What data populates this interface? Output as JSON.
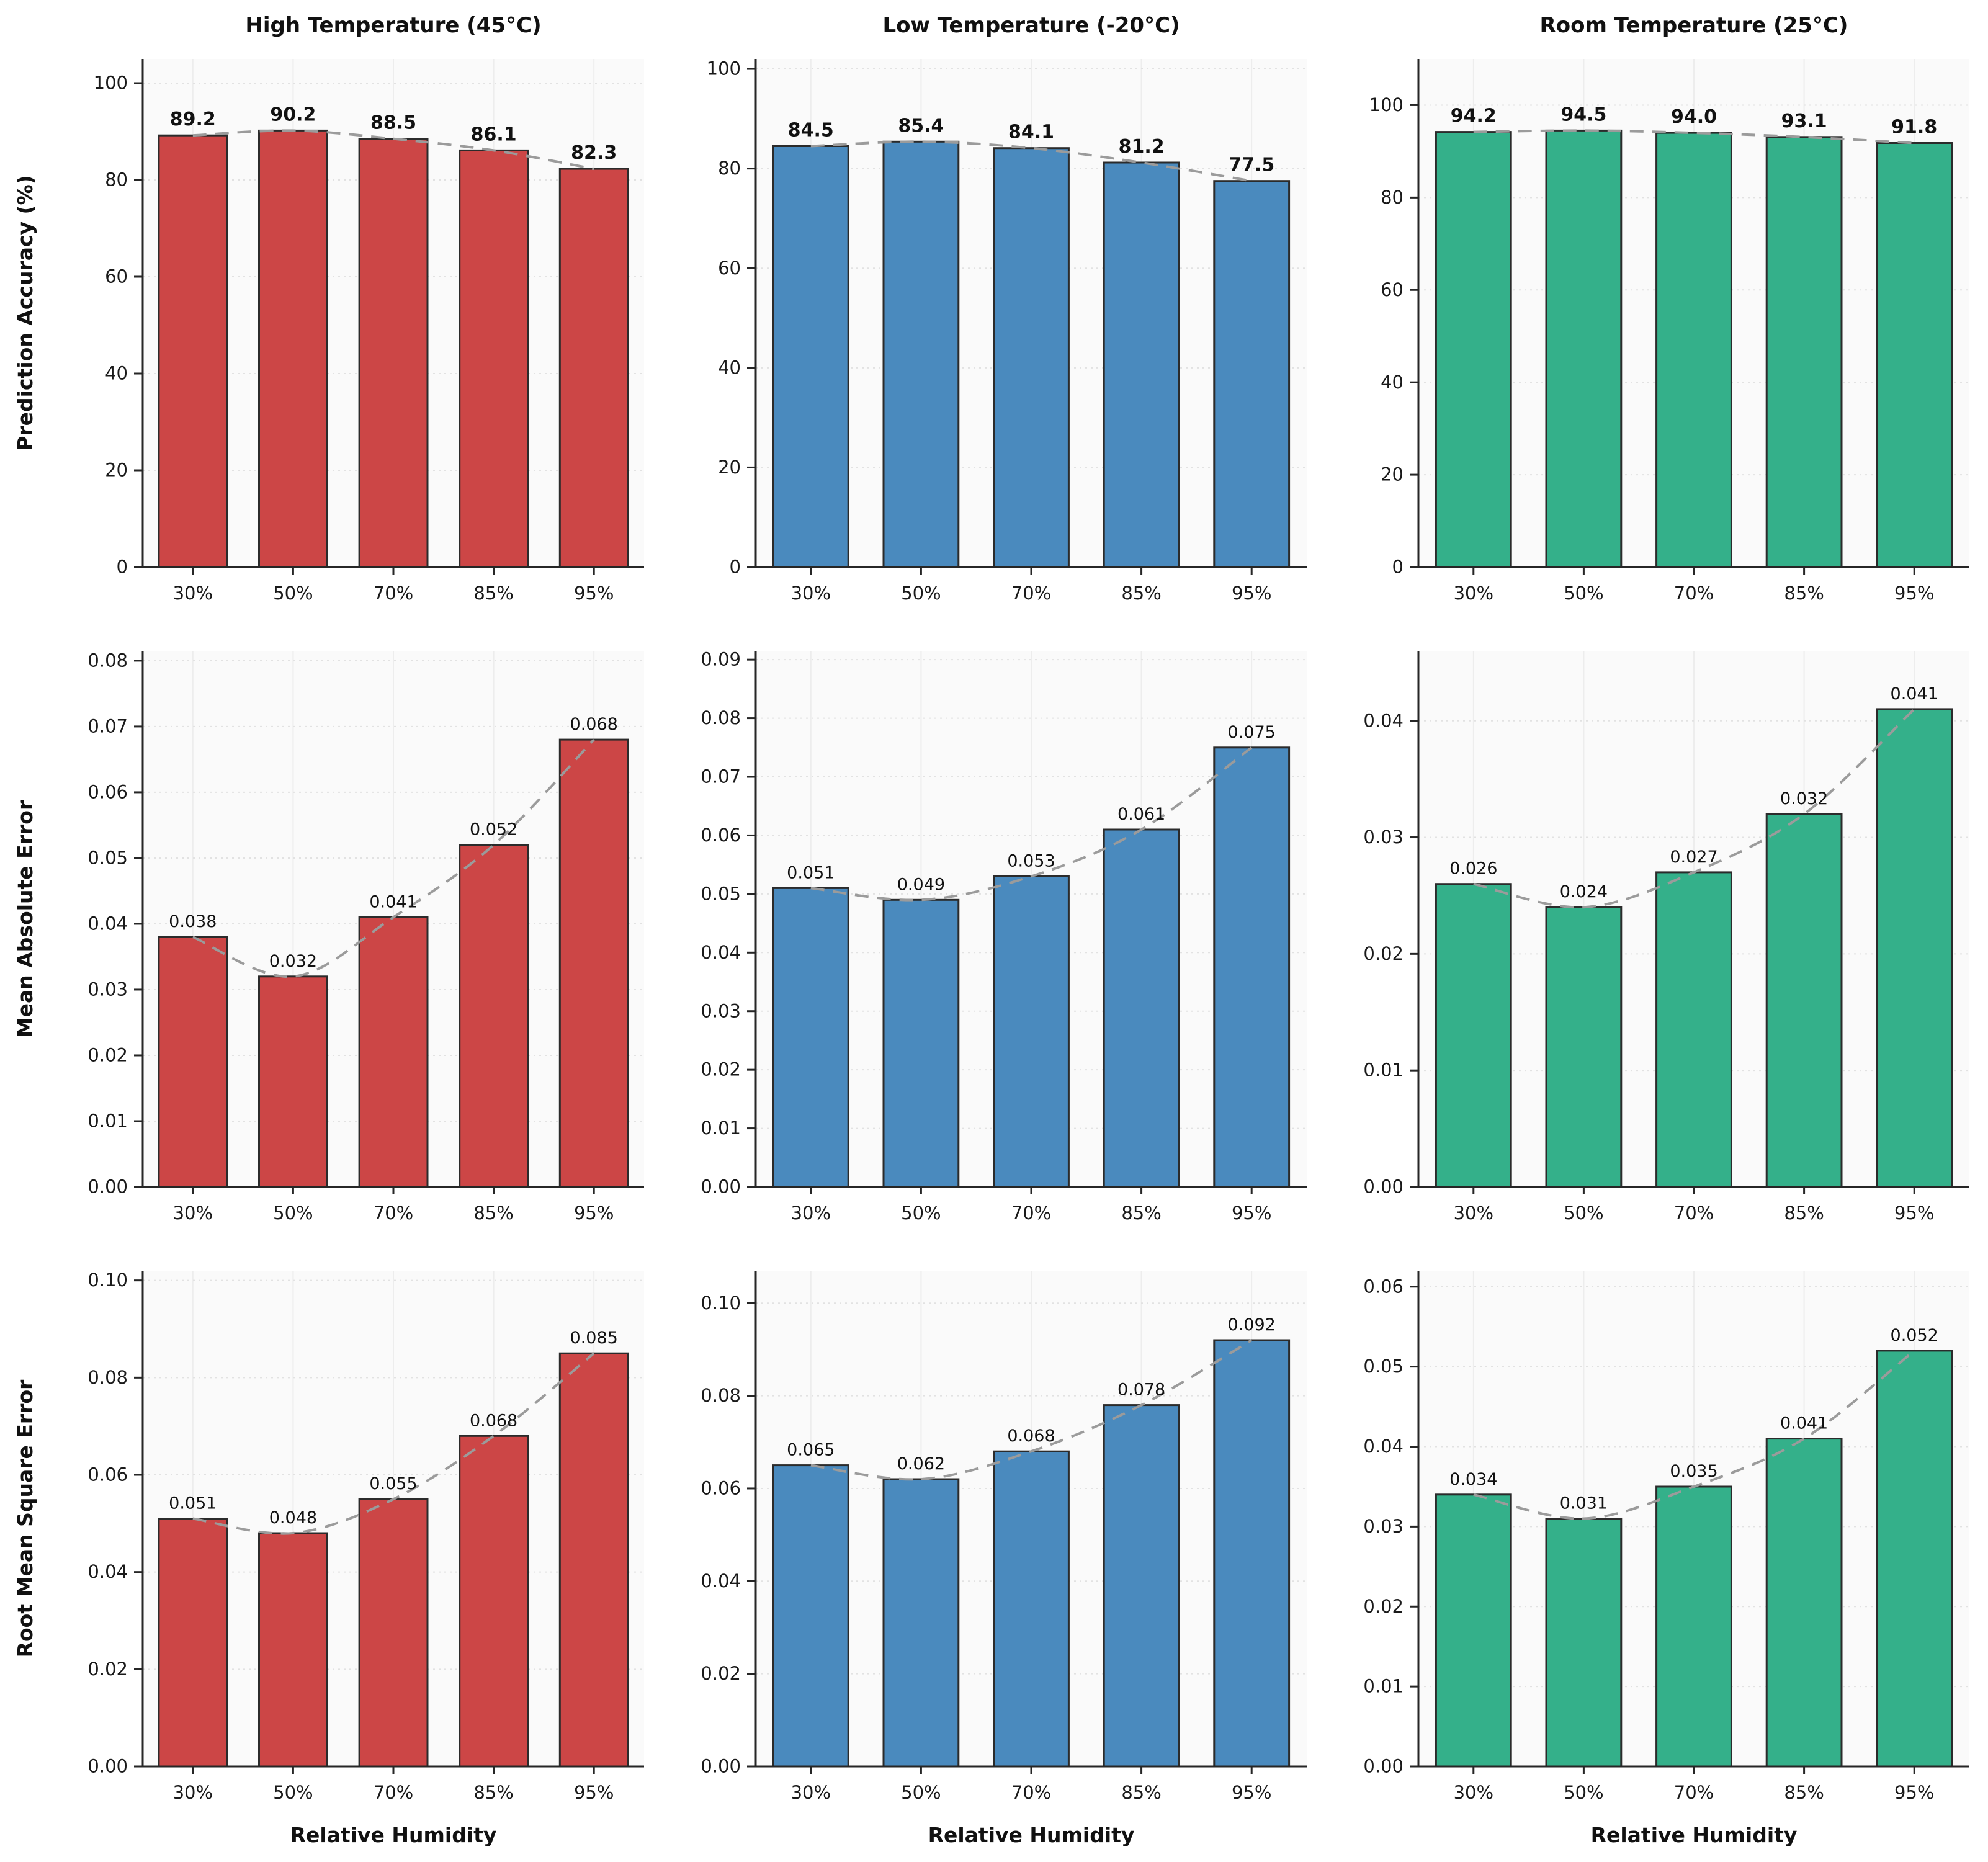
{
  "figure": {
    "xlabel": "Relative Humidity",
    "categories": [
      "30%",
      "50%",
      "70%",
      "85%",
      "95%"
    ],
    "columns": [
      {
        "key": "high-temperature",
        "title": "High Temperature (45°C)",
        "color": "#CC4646"
      },
      {
        "key": "low-temperature",
        "title": "Low Temperature (-20°C)",
        "color": "#4A8ABE"
      },
      {
        "key": "room-temperature",
        "title": "Room Temperature (25°C)",
        "color": "#34B08A"
      }
    ],
    "rows": [
      {
        "key": "prediction-accuracy",
        "ylabel": "Prediction Accuracy (%)"
      },
      {
        "key": "mean-absolute-error",
        "ylabel": "Mean Absolute Error"
      },
      {
        "key": "root-mean-square-error",
        "ylabel": "Root Mean Square Error"
      }
    ]
  },
  "style": {
    "trend_color": "#9B9B9B",
    "bar_edge_color": "#2B2B2B",
    "h_grid_color": "#E2E2E2",
    "v_grid_color": "#EDEDED",
    "plot_bg": "#FAFAFA",
    "axis_color": "#262626"
  },
  "chart_data": [
    {
      "type": "bar",
      "row": 0,
      "col": 0,
      "title": "High Temperature (45°C)",
      "ylabel": "Prediction Accuracy (%)",
      "xlabel": "",
      "categories": [
        "30%",
        "50%",
        "70%",
        "85%",
        "95%"
      ],
      "values": [
        89.2,
        90.2,
        88.5,
        86.1,
        82.3
      ],
      "bar_labels": [
        "89.2",
        "90.2",
        "88.5",
        "86.1",
        "82.3"
      ],
      "ylim": [
        0,
        105
      ],
      "yticks": [
        0,
        20,
        40,
        60,
        80,
        100
      ],
      "ytick_decimals": 0,
      "color": "#CC4646",
      "label_bold": true,
      "trend": true,
      "grid": true
    },
    {
      "type": "bar",
      "row": 0,
      "col": 1,
      "title": "Low Temperature (-20°C)",
      "ylabel": "",
      "xlabel": "",
      "categories": [
        "30%",
        "50%",
        "70%",
        "85%",
        "95%"
      ],
      "values": [
        84.5,
        85.4,
        84.1,
        81.2,
        77.5
      ],
      "bar_labels": [
        "84.5",
        "85.4",
        "84.1",
        "81.2",
        "77.5"
      ],
      "ylim": [
        0,
        102
      ],
      "yticks": [
        0,
        20,
        40,
        60,
        80,
        100
      ],
      "ytick_decimals": 0,
      "color": "#4A8ABE",
      "label_bold": true,
      "trend": true,
      "grid": true
    },
    {
      "type": "bar",
      "row": 0,
      "col": 2,
      "title": "Room Temperature (25°C)",
      "ylabel": "",
      "xlabel": "",
      "categories": [
        "30%",
        "50%",
        "70%",
        "85%",
        "95%"
      ],
      "values": [
        94.2,
        94.5,
        94.0,
        93.1,
        91.8
      ],
      "bar_labels": [
        "94.2",
        "94.5",
        "94.0",
        "93.1",
        "91.8"
      ],
      "ylim": [
        0,
        110
      ],
      "yticks": [
        0,
        20,
        40,
        60,
        80,
        100
      ],
      "ytick_decimals": 0,
      "color": "#34B08A",
      "label_bold": true,
      "trend": true,
      "grid": true
    },
    {
      "type": "bar",
      "row": 1,
      "col": 0,
      "title": "",
      "ylabel": "Mean Absolute Error",
      "xlabel": "",
      "categories": [
        "30%",
        "50%",
        "70%",
        "85%",
        "95%"
      ],
      "values": [
        0.038,
        0.032,
        0.041,
        0.052,
        0.068
      ],
      "bar_labels": [
        "0.038",
        "0.032",
        "0.041",
        "0.052",
        "0.068"
      ],
      "ylim": [
        0,
        0.0815
      ],
      "yticks": [
        0,
        0.01,
        0.02,
        0.03,
        0.04,
        0.05,
        0.06,
        0.07,
        0.08
      ],
      "ytick_decimals": 2,
      "color": "#CC4646",
      "label_bold": false,
      "trend": true,
      "grid": true
    },
    {
      "type": "bar",
      "row": 1,
      "col": 1,
      "title": "",
      "ylabel": "",
      "xlabel": "",
      "categories": [
        "30%",
        "50%",
        "70%",
        "85%",
        "95%"
      ],
      "values": [
        0.051,
        0.049,
        0.053,
        0.061,
        0.075
      ],
      "bar_labels": [
        "0.051",
        "0.049",
        "0.053",
        "0.061",
        "0.075"
      ],
      "ylim": [
        0,
        0.0915
      ],
      "yticks": [
        0,
        0.01,
        0.02,
        0.03,
        0.04,
        0.05,
        0.06,
        0.07,
        0.08,
        0.09
      ],
      "ytick_decimals": 2,
      "color": "#4A8ABE",
      "label_bold": false,
      "trend": true,
      "grid": true
    },
    {
      "type": "bar",
      "row": 1,
      "col": 2,
      "title": "",
      "ylabel": "",
      "xlabel": "",
      "categories": [
        "30%",
        "50%",
        "70%",
        "85%",
        "95%"
      ],
      "values": [
        0.026,
        0.024,
        0.027,
        0.032,
        0.041
      ],
      "bar_labels": [
        "0.026",
        "0.024",
        "0.027",
        "0.032",
        "0.041"
      ],
      "ylim": [
        0,
        0.046
      ],
      "yticks": [
        0,
        0.01,
        0.02,
        0.03,
        0.04
      ],
      "ytick_decimals": 2,
      "color": "#34B08A",
      "label_bold": false,
      "trend": true,
      "grid": true
    },
    {
      "type": "bar",
      "row": 2,
      "col": 0,
      "title": "",
      "ylabel": "Root Mean Square Error",
      "xlabel": "Relative Humidity",
      "categories": [
        "30%",
        "50%",
        "70%",
        "85%",
        "95%"
      ],
      "values": [
        0.051,
        0.048,
        0.055,
        0.068,
        0.085
      ],
      "bar_labels": [
        "0.051",
        "0.048",
        "0.055",
        "0.068",
        "0.085"
      ],
      "ylim": [
        0,
        0.102
      ],
      "yticks": [
        0,
        0.02,
        0.04,
        0.06,
        0.08,
        0.1
      ],
      "ytick_decimals": 2,
      "color": "#CC4646",
      "label_bold": false,
      "trend": true,
      "grid": true
    },
    {
      "type": "bar",
      "row": 2,
      "col": 1,
      "title": "",
      "ylabel": "",
      "xlabel": "Relative Humidity",
      "categories": [
        "30%",
        "50%",
        "70%",
        "85%",
        "95%"
      ],
      "values": [
        0.065,
        0.062,
        0.068,
        0.078,
        0.092
      ],
      "bar_labels": [
        "0.065",
        "0.062",
        "0.068",
        "0.078",
        "0.092"
      ],
      "ylim": [
        0,
        0.107
      ],
      "yticks": [
        0,
        0.02,
        0.04,
        0.06,
        0.08,
        0.1
      ],
      "ytick_decimals": 2,
      "color": "#4A8ABE",
      "label_bold": false,
      "trend": true,
      "grid": true
    },
    {
      "type": "bar",
      "row": 2,
      "col": 2,
      "title": "",
      "ylabel": "",
      "xlabel": "Relative Humidity",
      "categories": [
        "30%",
        "50%",
        "70%",
        "85%",
        "95%"
      ],
      "values": [
        0.034,
        0.031,
        0.035,
        0.041,
        0.052
      ],
      "bar_labels": [
        "0.034",
        "0.031",
        "0.035",
        "0.041",
        "0.052"
      ],
      "ylim": [
        0,
        0.062
      ],
      "yticks": [
        0,
        0.01,
        0.02,
        0.03,
        0.04,
        0.05,
        0.06
      ],
      "ytick_decimals": 2,
      "color": "#34B08A",
      "label_bold": false,
      "trend": true,
      "grid": true
    }
  ]
}
